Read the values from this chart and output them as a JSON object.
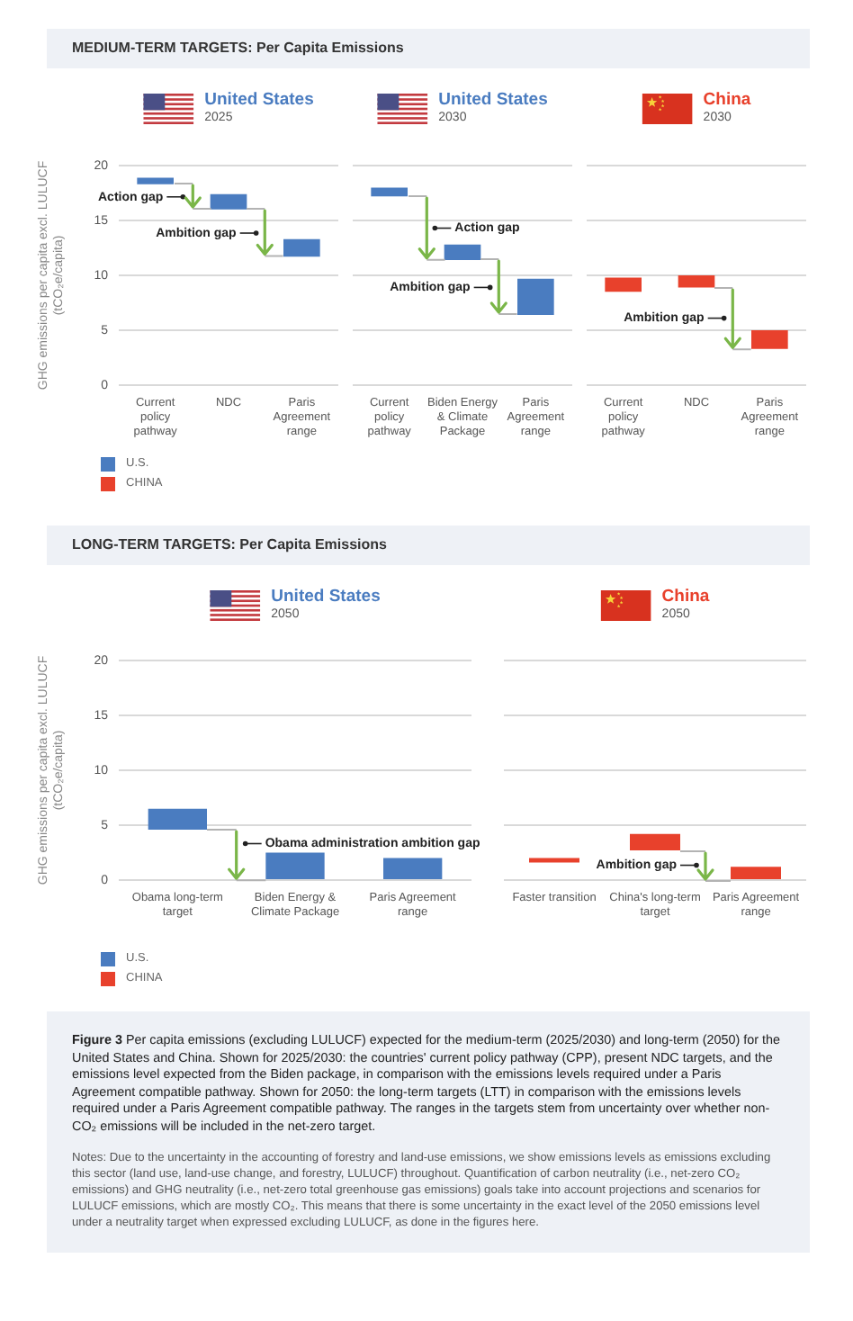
{
  "chart_data": [
    {
      "type": "bar",
      "title": "United States",
      "subtitle": "2025",
      "ylabel": "GHG emissions per capita excl. LULUCF (tCO₂e/capita)",
      "categories": [
        "Current policy pathway",
        "NDC",
        "Paris Agreement range"
      ],
      "series": [
        {
          "name": "U.S.",
          "color": "#4a7cc0",
          "values": [
            0.6,
            1.4,
            1.6
          ],
          "base": [
            18.3,
            16.0,
            11.7
          ]
        }
      ],
      "ylim": [
        0,
        20
      ],
      "yticks": [
        0,
        5,
        10,
        15,
        20
      ],
      "grid": "y",
      "legend": "bottom left",
      "annotations": [
        "MEDIUM-TERM TARGETS: Per Capita Emissions",
        "Action gap",
        "Ambition gap"
      ]
    },
    {
      "type": "bar",
      "title": "United States",
      "subtitle": "2030",
      "categories": [
        "Current policy pathway",
        "Biden Energy & Climate Package",
        "Paris Agreement range"
      ],
      "series": [
        {
          "color": "#4a7cc0",
          "values": [
            0.8,
            1.4,
            3.3
          ],
          "base": [
            17.2,
            11.4,
            6.4
          ]
        }
      ],
      "ylim": [
        0,
        20
      ],
      "yticks": [
        0,
        5,
        10,
        15,
        20
      ],
      "grid": "y",
      "tick_labels": "x",
      "annotations": [
        "Action gap",
        "Ambition gap"
      ]
    },
    {
      "type": "bar",
      "title": "China",
      "subtitle": "2030",
      "categories": [
        "Current policy pathway",
        "NDC",
        "Paris Agreement range"
      ],
      "series": [
        {
          "name": "CHINA",
          "color": "#e8412c",
          "values": [
            1.3,
            1.1,
            1.7
          ],
          "base": [
            8.5,
            8.9,
            3.3
          ]
        }
      ],
      "ylim": [
        0,
        20
      ],
      "yticks": [
        0,
        5,
        10,
        15,
        20
      ],
      "grid": "y",
      "tick_labels": "x",
      "legend": "bottom left",
      "annotations": [
        "Ambition gap"
      ]
    },
    {
      "type": "bar",
      "title": "United States",
      "subtitle": "2050",
      "ylabel": "GHG emissions per capita excl. LULUCF (tCO₂e/capita)",
      "categories": [
        "Obama long-term target",
        "Biden Energy & Climate Package",
        "Paris Agreement range"
      ],
      "series": [
        {
          "name": "U.S.",
          "color": "#4a7cc0",
          "values": [
            1.9,
            2.5,
            2.0
          ],
          "base": [
            4.6,
            0,
            0
          ]
        }
      ],
      "ylim": [
        0,
        20
      ],
      "yticks": [
        0,
        5,
        10,
        15,
        20
      ],
      "grid": "y",
      "legend": "bottom left",
      "annotations": [
        "LONG-TERM TARGETS: Per Capita Emissions",
        "Obama administration ambition gap"
      ]
    },
    {
      "type": "bar",
      "title": "China",
      "subtitle": "2050",
      "categories": [
        "Faster transition",
        "China's long-term target",
        "Paris Agreement range"
      ],
      "series": [
        {
          "name": "CHINA",
          "color": "#e8412c",
          "values": [
            0.4,
            1.5,
            1.2
          ],
          "base": [
            1.6,
            2.7,
            0
          ]
        }
      ],
      "ylim": [
        0,
        20
      ],
      "yticks": [
        0,
        5,
        10,
        15,
        20
      ],
      "grid": "y",
      "tick_labels": "x",
      "legend": "bottom left",
      "annotations": [
        "Ambition gap",
        "Figure 3 Per capita emissions (excluding LULUCF) expected for the medium-term (2025/2030) and long-term (2050) for the United States and China. Shown for 2025/2030: the countries' current policy pathway (CPP), present NDC targets, and the emissions level expected from the Biden package, in comparison with the emissions levels required under a Paris Agreement compatible pathway. Shown for 2050: the long-term targets (LTT) in comparison with the emissions levels required under a Paris Agreement compatible pathway. The ranges in the targets stem from uncertainty over whether non-CO₂ emissions will be included in the net-zero target.",
        "Notes: Due to the uncertainty in the accounting of forestry and land-use emissions, we show emissions levels as emissions excluding this sector (land use, land-use change, and forestry, LULUCF) throughout. Quantification of carbon neutrality (i.e., net-zero CO₂ emissions) and GHG neutrality (i.e., net-zero total greenhouse gas emissions) goals take into account projections and scenarios for LULUCF emissions, which are mostly CO₂. This means that there is some uncertainty in the exact level of the 2050 emissions level under a neutrality target when expressed excluding LULUCF, as done in the figures here."
      ]
    }
  ]
}
